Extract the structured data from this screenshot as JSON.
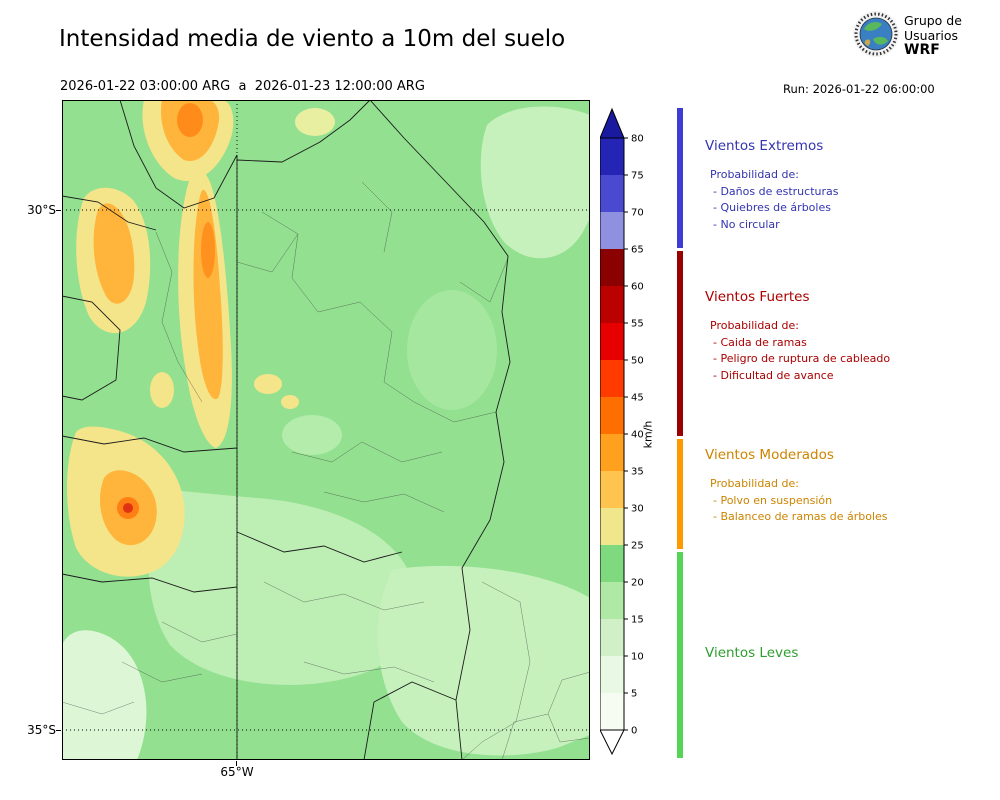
{
  "header": {
    "title": "Intensidad media de viento a 10m del suelo",
    "subtitle": "2026-01-22 03:00:00 ARG  a  2026-01-23 12:00:00 ARG",
    "run": "Run: 2026-01-22 06:00:00",
    "logo": {
      "line1": "Grupo de",
      "line2": "Usuarios",
      "line3": "WRF"
    }
  },
  "map": {
    "lat_ticks": [
      {
        "label": "30°S"
      },
      {
        "label": "35°S"
      }
    ],
    "lon_ticks": [
      {
        "label": "65°W"
      }
    ],
    "palette": {
      "base_green": "#92e090",
      "light_green": "#bdeeb4",
      "pale_green": "#ddf7d6",
      "yellow": "#f4e58a",
      "orange": "#ffb43c",
      "dark_orange": "#ff8c1a",
      "red_spot": "#e03314",
      "border_line": "#1b1b1b"
    }
  },
  "colorbar": {
    "unit": "km/h",
    "tick_values": [
      0,
      5,
      10,
      15,
      20,
      25,
      30,
      35,
      40,
      45,
      50,
      55,
      60,
      65,
      70,
      75,
      80
    ],
    "segment_colors": [
      "#f7fcf3",
      "#e9f8e2",
      "#d2f0c8",
      "#b0e8a6",
      "#7fd97f",
      "#f0e68c",
      "#ffc44d",
      "#ffa01e",
      "#ff6f00",
      "#ff3b00",
      "#e60000",
      "#bb0000",
      "#8b0000",
      "#9090e0",
      "#4a4ad0",
      "#2525b5"
    ],
    "arrow_color": "#1a1aa0",
    "under_color": "#ffffff"
  },
  "legend": {
    "sections": [
      {
        "title": "Vientos Extremos",
        "color": "#3333b0",
        "bar_color": "#3d3dd6",
        "prob": "Probabilidad de:",
        "items": [
          "- Daños de estructuras",
          "- Quiebres de árboles",
          "- No circular"
        ]
      },
      {
        "title": "Vientos Fuertes",
        "color": "#aa0000",
        "bar_color": "#990000",
        "prob": "Probabilidad de:",
        "items": [
          "- Caida de ramas",
          "- Peligro de ruptura de cableado",
          "- Dificultad de avance"
        ]
      },
      {
        "title": "Vientos Moderados",
        "color": "#cc8400",
        "bar_color": "#ff9900",
        "prob": "Probabilidad de:",
        "items": [
          "- Polvo en suspensión",
          "- Balanceo de ramas de árboles"
        ]
      },
      {
        "title": "Vientos Leves",
        "color": "#2e9e2e",
        "bar_color": "#55d455",
        "prob": "",
        "items": []
      }
    ]
  }
}
